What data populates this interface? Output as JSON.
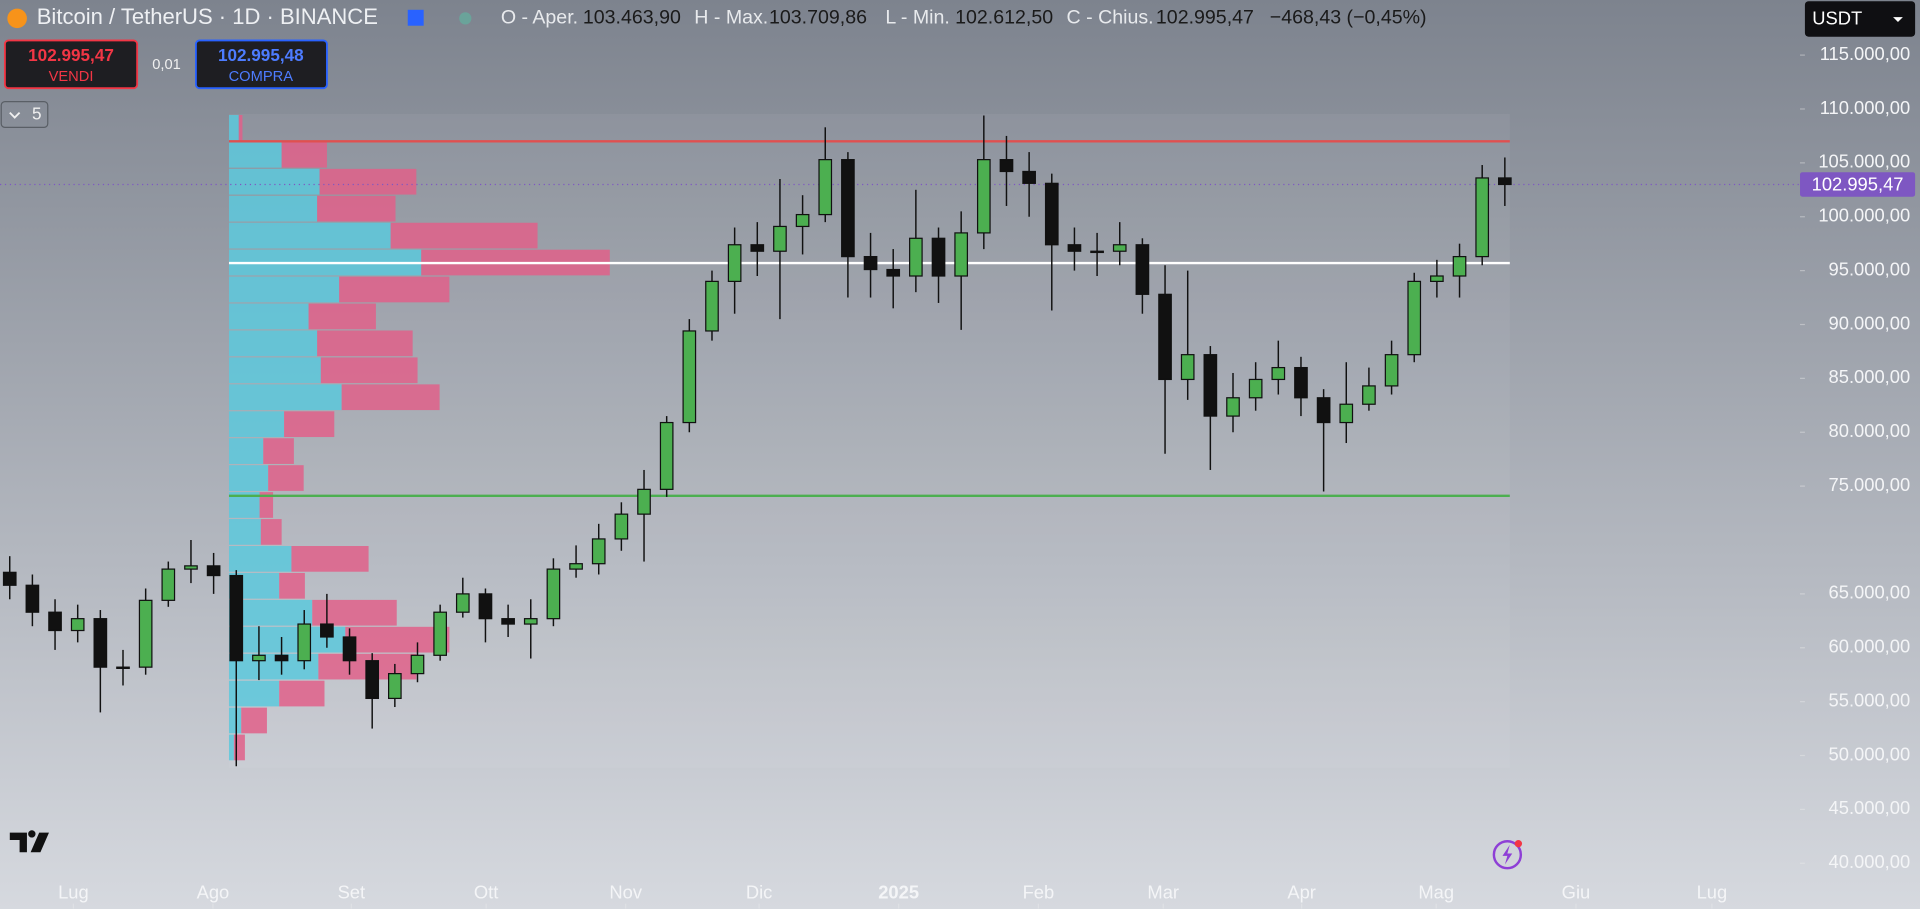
{
  "chart_data": {
    "type": "candlestick",
    "title": "Bitcoin / TetherUS · 1D · BINANCE",
    "open": [
      67000,
      65800,
      63300,
      61600,
      62700,
      58200,
      58200,
      64400,
      67300,
      67600,
      66700,
      58800,
      59300,
      58800,
      62200,
      61000,
      58800,
      55300,
      57600,
      59300,
      63300,
      65000,
      62700,
      62200,
      62700,
      67300,
      67800,
      70100,
      72400,
      74700,
      80900,
      89400,
      94000,
      97400,
      96800,
      99100,
      100200,
      105300,
      96300,
      95100,
      94500,
      98000,
      94500,
      98500,
      105300,
      104200,
      103100,
      97400,
      96800,
      96800,
      97400,
      92800,
      84900,
      87200,
      81500,
      83200,
      84900,
      86000,
      83200,
      80900,
      82600,
      84300,
      87200,
      94000,
      94500,
      96300,
      103600
    ],
    "high": [
      68500,
      66800,
      64500,
      64000,
      63500,
      59800,
      65500,
      68000,
      70000,
      68800,
      67200,
      62000,
      61000,
      63500,
      65000,
      61800,
      59500,
      58500,
      60500,
      64000,
      66500,
      65500,
      64000,
      64500,
      68300,
      69500,
      71500,
      73500,
      76500,
      81500,
      90500,
      95000,
      99000,
      99500,
      103500,
      102000,
      108300,
      106000,
      98500,
      97000,
      102500,
      99000,
      100500,
      109400,
      107500,
      106000,
      104000,
      99000,
      98500,
      99500,
      98000,
      95500,
      95000,
      88000,
      85500,
      86500,
      88500,
      87000,
      84000,
      86500,
      86000,
      88500,
      94800,
      96000,
      97500,
      104800,
      105500
    ],
    "low": [
      64500,
      62000,
      59800,
      60500,
      54000,
      56500,
      57500,
      63800,
      66000,
      65000,
      49000,
      57000,
      57500,
      58000,
      60000,
      57500,
      52500,
      54500,
      56800,
      58800,
      62800,
      60500,
      61000,
      59000,
      62000,
      66500,
      66800,
      69000,
      68000,
      74000,
      80000,
      88500,
      91000,
      94500,
      90500,
      96500,
      99500,
      92500,
      92500,
      91500,
      93000,
      92000,
      89500,
      97000,
      101000,
      100000,
      91300,
      95000,
      94500,
      95500,
      91000,
      78000,
      83000,
      76500,
      80000,
      82000,
      83500,
      81500,
      74500,
      79000,
      82000,
      83500,
      86500,
      92500,
      92500,
      95500,
      101000
    ],
    "close": [
      65800,
      63300,
      61600,
      62700,
      58200,
      58200,
      64400,
      67300,
      67600,
      66700,
      58800,
      59300,
      58800,
      62200,
      61000,
      58800,
      55300,
      57600,
      59300,
      63300,
      65000,
      62700,
      62200,
      62700,
      67300,
      67800,
      70100,
      72400,
      74700,
      80900,
      89400,
      94000,
      97400,
      96800,
      99100,
      100200,
      105300,
      96300,
      95100,
      94500,
      98000,
      94500,
      98500,
      105300,
      104200,
      103100,
      97400,
      96800,
      96800,
      97400,
      92800,
      84900,
      87200,
      81500,
      83200,
      84900,
      86000,
      83200,
      80900,
      82600,
      84300,
      87200,
      94000,
      94500,
      96300,
      103600,
      102995
    ],
    "up_color": "#4caf50",
    "down_color": "#111111",
    "xlim": [
      -0.43,
      79.03
    ],
    "xticks": [
      {
        "value": 2.81,
        "label": "Lug"
      },
      {
        "value": 8.97,
        "label": "Ago"
      },
      {
        "value": 15.08,
        "label": "Set"
      },
      {
        "value": 21.03,
        "label": "Ott"
      },
      {
        "value": 27.19,
        "label": "Nov"
      },
      {
        "value": 33.08,
        "label": "Dic"
      },
      {
        "value": 39.24,
        "label": "2025"
      },
      {
        "value": 45.41,
        "label": "Feb"
      },
      {
        "value": 50.92,
        "label": "Mar"
      },
      {
        "value": 57.03,
        "label": "Apr"
      },
      {
        "value": 62.97,
        "label": "Mag"
      },
      {
        "value": 69.14,
        "label": "Giu"
      },
      {
        "value": 75.14,
        "label": "Lug"
      }
    ],
    "ylim": [
      35795,
      120114
    ],
    "yticks": [
      {
        "value": 115000,
        "label": "115.000,00"
      },
      {
        "value": 110000,
        "label": "110.000,00"
      },
      {
        "value": 105000,
        "label": "105.000,00"
      },
      {
        "value": 100000,
        "label": "100.000,00"
      },
      {
        "value": 95000,
        "label": "95.000,00"
      },
      {
        "value": 90000,
        "label": "90.000,00"
      },
      {
        "value": 85000,
        "label": "85.000,00"
      },
      {
        "value": 80000,
        "label": "80.000,00"
      },
      {
        "value": 75000,
        "label": "75.000,00"
      },
      {
        "value": 65000,
        "label": "65.000,00"
      },
      {
        "value": 60000,
        "label": "60.000,00"
      },
      {
        "value": 55000,
        "label": "55.000,00"
      },
      {
        "value": 50000,
        "label": "50.000,00"
      },
      {
        "value": 45000,
        "label": "45.000,00"
      },
      {
        "value": 40000,
        "label": "40.000,00"
      }
    ],
    "last_price": 102995.47,
    "last_price_label": "102.995,47",
    "last_price_color": "#7e57c2",
    "levels": [
      {
        "value": 107000,
        "color": "#e05050"
      },
      {
        "value": 95700,
        "color": "#ffffff"
      },
      {
        "value": 74100,
        "color": "#4caf50"
      }
    ],
    "volume_profile": {
      "bins": [
        49500,
        52000,
        54500,
        57000,
        59500,
        62000,
        64500,
        67000,
        69500,
        72000,
        74500,
        77000,
        79500,
        82000,
        84500,
        87000,
        89500,
        92000,
        94500,
        97000,
        99500,
        102000,
        104500,
        107000,
        109500
      ],
      "buy": [
        4,
        10,
        41,
        73,
        95,
        68,
        41,
        51,
        26,
        25,
        32,
        28,
        45,
        92,
        75,
        72,
        65,
        90,
        157,
        132,
        72,
        74,
        43,
        8
      ],
      "sell": [
        9,
        21,
        37,
        80,
        85,
        69,
        21,
        63,
        17,
        11,
        29,
        25,
        41,
        80,
        79,
        78,
        55,
        90,
        154,
        120,
        64,
        79,
        37,
        3
      ],
      "buy_color": "#5cc8dc",
      "sell_color": "#e0608a"
    }
  },
  "toolbar": {
    "ohlc": [
      {
        "label": "O - Aper.",
        "value": "103.463,90"
      },
      {
        "label": "H - Max.",
        "value": "103.709,86"
      },
      {
        "label": "L - Min.",
        "value": "102.612,50"
      },
      {
        "label": "C - Chius.",
        "value": "102.995,47"
      }
    ],
    "change": "−468,43 (−0,45%)",
    "sell": {
      "price": "102.995,47",
      "label": "VENDI"
    },
    "spread": "0,01",
    "buy": {
      "price": "102.995,48",
      "label": "COMPRA"
    },
    "indicators_count": "5",
    "currency": "USDT"
  }
}
